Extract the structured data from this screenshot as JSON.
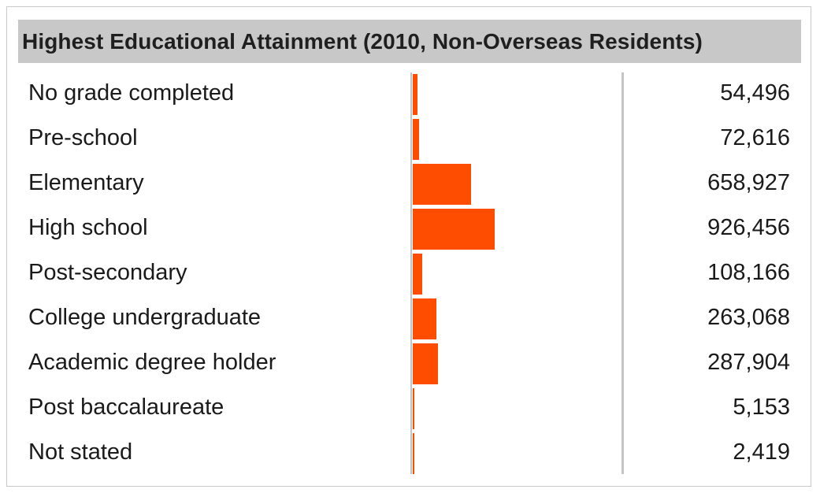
{
  "chart_data": {
    "type": "bar",
    "orientation": "horizontal",
    "title": "Highest Educational Attainment (2010, Non-Overseas Residents)",
    "categories": [
      "No grade completed",
      "Pre-school",
      "Elementary",
      "High school",
      "Post-secondary",
      "College undergraduate",
      "Academic degree holder",
      "Post baccalaureate",
      "Not stated"
    ],
    "values": [
      54496,
      72616,
      658927,
      926456,
      108166,
      263068,
      287904,
      5153,
      2419
    ],
    "value_labels": [
      "54,496",
      "72,616",
      "658,927",
      "926,456",
      "108,166",
      "263,068",
      "287,904",
      "5,153",
      "2,419"
    ],
    "bar_color": "#ff4d00",
    "grid": false,
    "legend": "none"
  }
}
